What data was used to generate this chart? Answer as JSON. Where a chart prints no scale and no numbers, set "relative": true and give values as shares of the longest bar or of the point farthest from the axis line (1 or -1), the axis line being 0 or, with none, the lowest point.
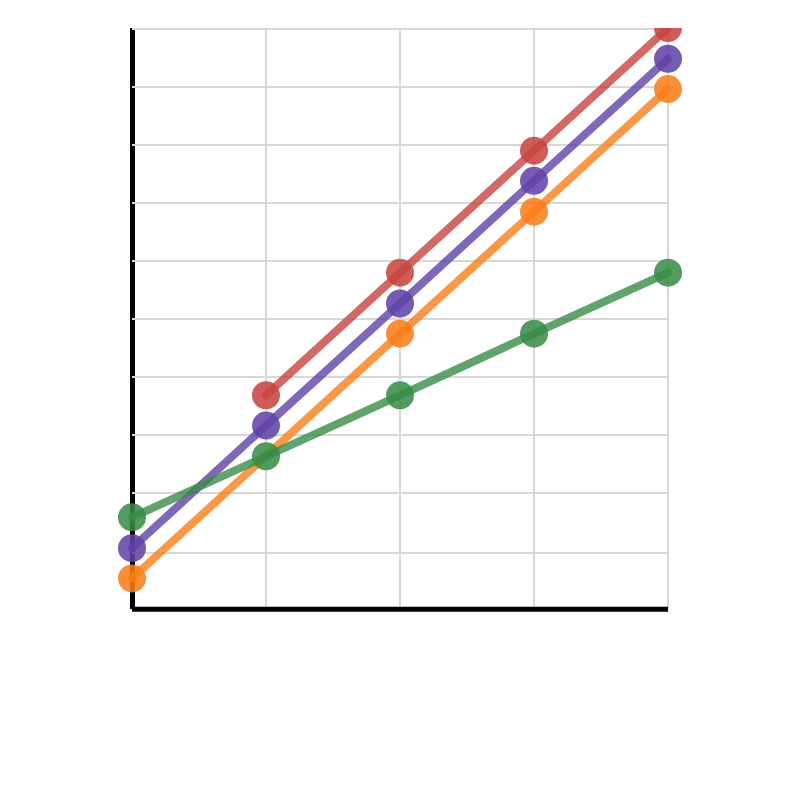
{
  "chart_data": {
    "type": "line",
    "relative": true,
    "grid": true,
    "legend": false,
    "marker": "circle",
    "categories": [
      null,
      null,
      null,
      null,
      null
    ],
    "series": [
      {
        "color": "#fa7e19",
        "values": [
          0.053,
          null,
          0.474,
          0.684,
          0.895
        ]
      },
      {
        "color": "#6042a6",
        "values": [
          0.105,
          0.316,
          0.526,
          0.737,
          0.947
        ]
      },
      {
        "color": "#c74440",
        "values": [
          null,
          0.368,
          0.579,
          0.789,
          1
        ]
      },
      {
        "color": "#388c46",
        "values": [
          0.158,
          0.263,
          0.368,
          0.474,
          0.579
        ]
      }
    ]
  }
}
